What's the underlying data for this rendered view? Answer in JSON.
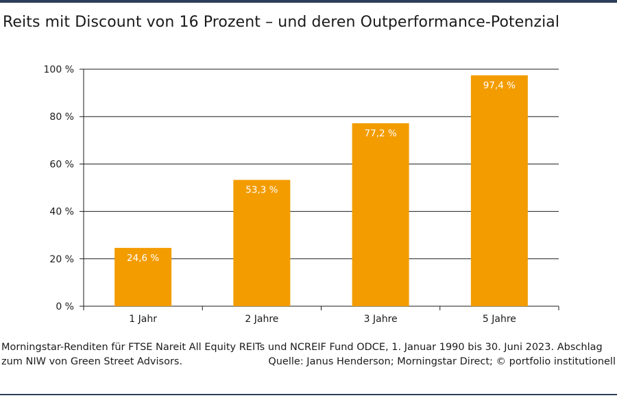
{
  "title": "Reits mit Discount von 16 Prozent – und deren Outperformance-Potenzial",
  "chart_data": {
    "type": "bar",
    "categories": [
      "1 Jahr",
      "2 Jahre",
      "3 Jahre",
      "5 Jahre"
    ],
    "values": [
      24.6,
      53.3,
      77.2,
      97.4
    ],
    "value_labels": [
      "24,6 %",
      "53,3 %",
      "77,2 %",
      "97,4 %"
    ],
    "yticks": [
      0,
      20,
      40,
      60,
      80,
      100
    ],
    "ytick_labels": [
      "0 %",
      "20 %",
      "40 %",
      "60 %",
      "80 %",
      "100 %"
    ],
    "ylim": [
      0,
      100
    ],
    "grid": true,
    "bar_color": "#f39c00"
  },
  "footnote": {
    "line1": "Morningstar-Renditen für FTSE Nareit All Equity REITs und NCREIF Fund ODCE, 1. Januar 1990 bis 30. Juni 2023. Abschlag",
    "line2_left": "zum NIW von Green Street Advisors.",
    "line2_right": "Quelle: Janus Henderson; Morningstar Direct; © portfolio institutionell"
  }
}
